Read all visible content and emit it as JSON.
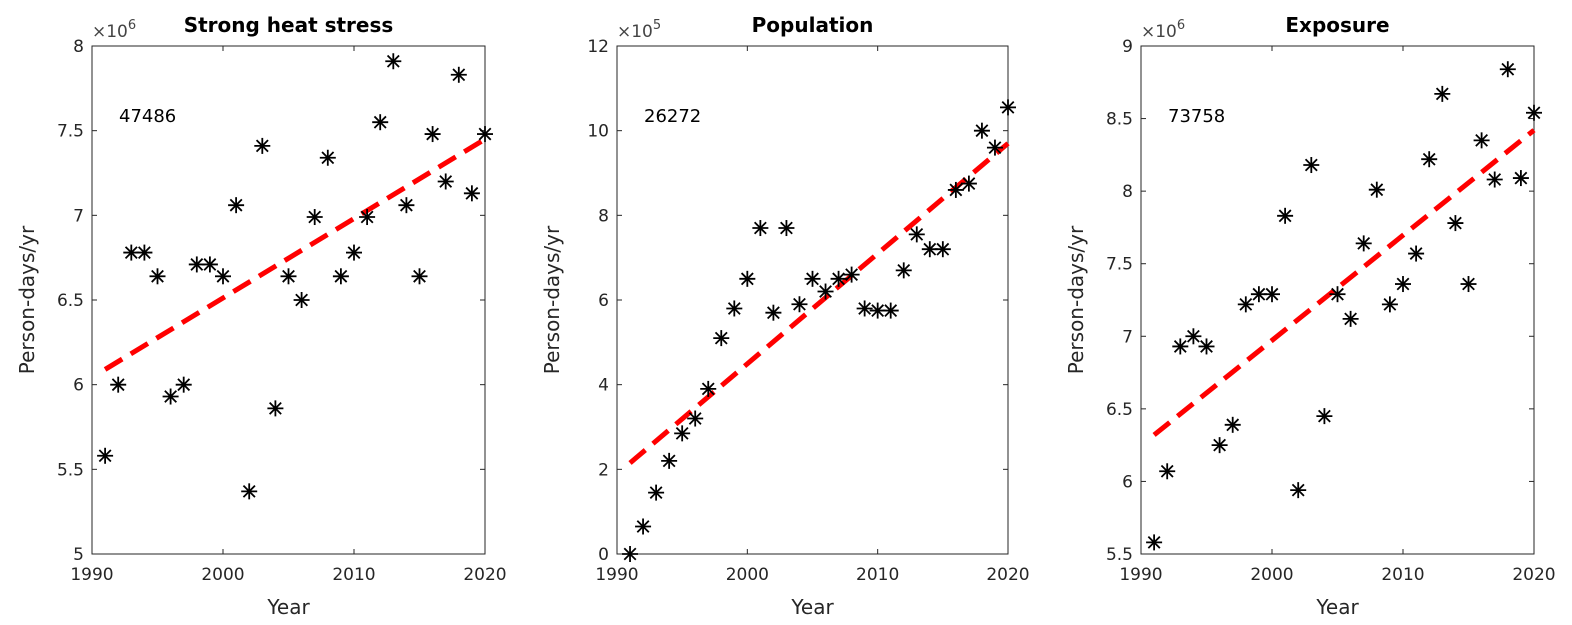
{
  "figure": {
    "background": "#ffffff",
    "marker_color": "#000000",
    "trend_color": "#ff0000"
  },
  "chart_data": [
    {
      "type": "scatter",
      "title": "Strong heat stress",
      "xlabel": "Year",
      "ylabel": "Person-days/yr",
      "xlim": [
        1990,
        2020
      ],
      "ylim": [
        5,
        8
      ],
      "y_exponent_label": "×10",
      "y_exponent_power": "6",
      "x_ticks": [
        1990,
        2000,
        2010,
        2020
      ],
      "x_tick_labels": [
        "1990",
        "2000",
        "2010",
        "2020"
      ],
      "y_ticks": [
        5,
        5.5,
        6,
        6.5,
        7,
        7.5,
        8
      ],
      "y_tick_labels": [
        "5",
        "5.5",
        "6",
        "6.5",
        "7",
        "7.5",
        "8"
      ],
      "annotation": "47486",
      "marker": "asterisk",
      "grid": false,
      "series": [
        {
          "x": [
            1991,
            1992,
            1993,
            1994,
            1995,
            1996,
            1997,
            1998,
            1999,
            2000,
            2001,
            2002,
            2003,
            2004,
            2005,
            2006,
            2007,
            2008,
            2009,
            2010,
            2011,
            2012,
            2013,
            2014,
            2015,
            2016,
            2017,
            2018,
            2019,
            2020
          ],
          "y": [
            5.58,
            6.0,
            6.78,
            6.78,
            6.64,
            5.93,
            6.0,
            6.71,
            6.71,
            6.64,
            7.06,
            5.37,
            7.41,
            5.86,
            6.64,
            6.5,
            6.99,
            7.34,
            6.64,
            6.78,
            6.99,
            7.55,
            7.91,
            7.06,
            6.64,
            7.48,
            7.2,
            7.83,
            7.13,
            7.48
          ]
        }
      ],
      "trend": {
        "x": [
          1991,
          2020
        ],
        "y": [
          6.09,
          7.45
        ]
      }
    },
    {
      "type": "scatter",
      "title": "Population",
      "xlabel": "Year",
      "ylabel": "Person-days/yr",
      "xlim": [
        1990,
        2020
      ],
      "ylim": [
        0,
        12
      ],
      "y_exponent_label": "×10",
      "y_exponent_power": "5",
      "x_ticks": [
        1990,
        2000,
        2010,
        2020
      ],
      "x_tick_labels": [
        "1990",
        "2000",
        "2010",
        "2020"
      ],
      "y_ticks": [
        0,
        2,
        4,
        6,
        8,
        10,
        12
      ],
      "y_tick_labels": [
        "0",
        "2",
        "4",
        "6",
        "8",
        "10",
        "12"
      ],
      "annotation": "26272",
      "marker": "asterisk",
      "grid": false,
      "series": [
        {
          "x": [
            1991,
            1992,
            1993,
            1994,
            1995,
            1996,
            1997,
            1998,
            1999,
            2000,
            2001,
            2002,
            2003,
            2004,
            2005,
            2006,
            2007,
            2008,
            2009,
            2010,
            2011,
            2012,
            2013,
            2014,
            2015,
            2016,
            2017,
            2018,
            2019,
            2020
          ],
          "y": [
            0.0,
            0.65,
            1.45,
            2.2,
            2.85,
            3.2,
            3.9,
            5.1,
            5.8,
            6.5,
            7.7,
            5.7,
            7.7,
            5.9,
            6.5,
            6.2,
            6.5,
            6.6,
            5.8,
            5.75,
            5.75,
            6.7,
            7.55,
            7.2,
            7.2,
            8.6,
            8.75,
            10.0,
            9.6,
            10.55
          ]
        }
      ],
      "trend": {
        "x": [
          1991,
          2020
        ],
        "y": [
          2.15,
          9.7
        ]
      }
    },
    {
      "type": "scatter",
      "title": "Exposure",
      "xlabel": "Year",
      "ylabel": "Person-days/yr",
      "xlim": [
        1990,
        2020
      ],
      "ylim": [
        5.5,
        9
      ],
      "y_exponent_label": "×10",
      "y_exponent_power": "6",
      "x_ticks": [
        1990,
        2000,
        2010,
        2020
      ],
      "x_tick_labels": [
        "1990",
        "2000",
        "2010",
        "2020"
      ],
      "y_ticks": [
        5.5,
        6,
        6.5,
        7,
        7.5,
        8,
        8.5,
        9
      ],
      "y_tick_labels": [
        "5.5",
        "6",
        "6.5",
        "7",
        "7.5",
        "8",
        "8.5",
        "9"
      ],
      "annotation": "73758",
      "marker": "asterisk",
      "grid": false,
      "series": [
        {
          "x": [
            1991,
            1992,
            1993,
            1994,
            1995,
            1996,
            1997,
            1998,
            1999,
            2000,
            2001,
            2002,
            2003,
            2004,
            2005,
            2006,
            2007,
            2008,
            2009,
            2010,
            2011,
            2012,
            2013,
            2014,
            2015,
            2016,
            2017,
            2018,
            2019,
            2020
          ],
          "y": [
            5.58,
            6.07,
            6.93,
            7.0,
            6.93,
            6.25,
            6.39,
            7.22,
            7.29,
            7.29,
            7.83,
            5.94,
            8.18,
            6.45,
            7.29,
            7.12,
            7.64,
            8.01,
            7.22,
            7.36,
            7.57,
            8.22,
            8.67,
            7.78,
            7.36,
            8.35,
            8.08,
            8.84,
            8.09,
            8.54
          ]
        }
      ],
      "trend": {
        "x": [
          1991,
          2020
        ],
        "y": [
          6.32,
          8.42
        ]
      }
    }
  ]
}
